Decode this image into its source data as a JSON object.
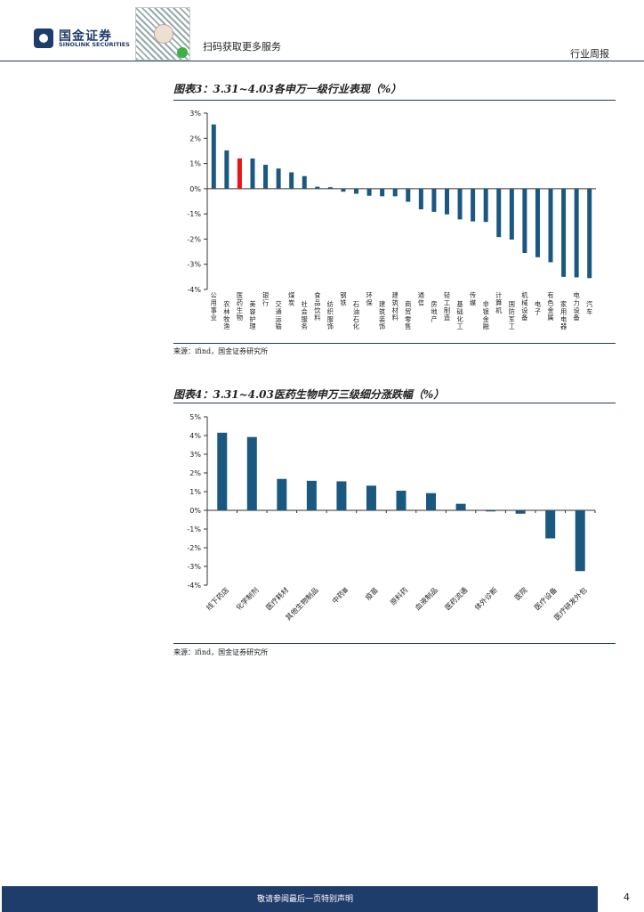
{
  "header": {
    "logo_cn": "国金证券",
    "logo_en": "SINOLINK SECURITIES",
    "scan_text": "扫码获取更多服务",
    "report_type": "行业周报"
  },
  "figure3": {
    "title": "图表3：3.31~4.03各申万一级行业表现（%）",
    "source": "来源：ifind，国金证券研究所"
  },
  "figure4": {
    "title": "图表4：3.31~4.03医药生物申万三级细分涨跌幅（%）",
    "source": "来源：ifind，国金证券研究所"
  },
  "footer": {
    "text": "敬请参阅最后一页特别声明",
    "page": "4"
  },
  "colors": {
    "bar": "#1b5880",
    "highlight": "#e8151b",
    "accent": "#1f3d6a"
  },
  "chart_data": [
    {
      "type": "bar",
      "categories": [
        "公用事业",
        "农林牧渔",
        "医药生物",
        "美容护理",
        "银行",
        "交通运输",
        "煤炭",
        "社会服务",
        "食品饮料",
        "纺织服饰",
        "钢铁",
        "石油石化",
        "环保",
        "建筑装饰",
        "建筑材料",
        "商贸零售",
        "通信",
        "房地产",
        "轻工制造",
        "基础化工",
        "传媒",
        "非银金融",
        "计算机",
        "国防军工",
        "机械设备",
        "电子",
        "有色金属",
        "家用电器",
        "电力设备",
        "汽车"
      ],
      "values": [
        2.55,
        1.52,
        1.2,
        1.2,
        0.95,
        0.8,
        0.65,
        0.5,
        0.08,
        0.06,
        -0.12,
        -0.2,
        -0.28,
        -0.3,
        -0.3,
        -0.52,
        -0.82,
        -0.92,
        -1.02,
        -1.22,
        -1.3,
        -1.32,
        -1.92,
        -2.02,
        -2.55,
        -2.72,
        -2.92,
        -3.5,
        -3.52,
        -3.55
      ],
      "highlight_index": 2,
      "ylim": [
        -4,
        3
      ],
      "yticks": [
        "3%",
        "2%",
        "1%",
        "0%",
        "-1%",
        "-2%",
        "-3%",
        "-4%"
      ],
      "ytick_values": [
        3,
        2,
        1,
        0,
        -1,
        -2,
        -3,
        -4
      ]
    },
    {
      "type": "bar",
      "categories": [
        "线下药店",
        "化学制剂",
        "医疗耗材",
        "其他生物制品",
        "中药Ⅲ",
        "疫苗",
        "原料药",
        "血液制品",
        "医药流通",
        "体外诊断",
        "医院",
        "医疗设备",
        "医疗研发外包"
      ],
      "values": [
        4.15,
        3.92,
        1.68,
        1.58,
        1.55,
        1.32,
        1.05,
        0.92,
        0.35,
        -0.06,
        -0.18,
        -1.5,
        -3.25
      ],
      "ylim": [
        -4,
        5
      ],
      "yticks": [
        "5%",
        "4%",
        "3%",
        "2%",
        "1%",
        "0%",
        "-1%",
        "-2%",
        "-3%",
        "-4%"
      ],
      "ytick_values": [
        5,
        4,
        3,
        2,
        1,
        0,
        -1,
        -2,
        -3,
        -4
      ]
    }
  ]
}
